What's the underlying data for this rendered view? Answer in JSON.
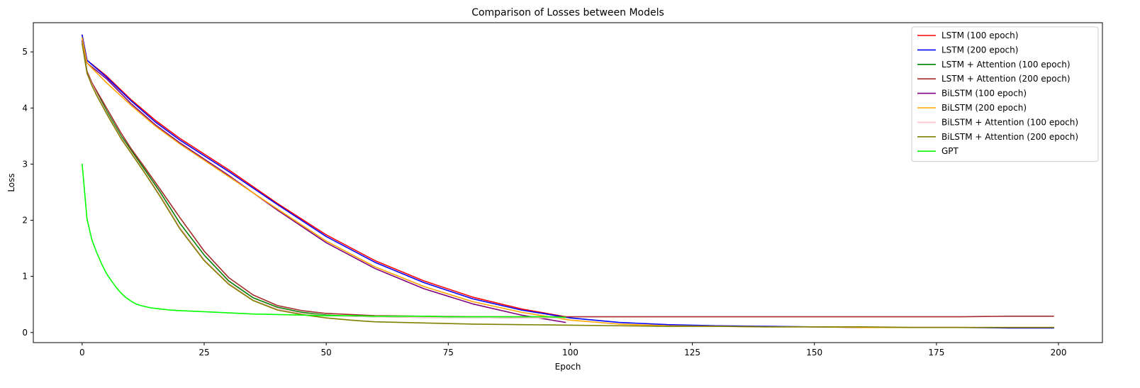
{
  "chart_data": {
    "type": "line",
    "title": "Comparison of Losses between Models",
    "xlabel": "Epoch",
    "ylabel": "Loss",
    "xlim": [
      -10,
      209
    ],
    "ylim": [
      -0.18,
      5.52
    ],
    "xticks": [
      0,
      25,
      50,
      75,
      100,
      125,
      150,
      175,
      200
    ],
    "yticks": [
      0,
      1,
      2,
      3,
      4,
      5
    ],
    "grid": false,
    "legend": "top-right",
    "series": [
      {
        "name": "LSTM (100 epoch)",
        "color": "#ff0000",
        "x": [
          0,
          1,
          5,
          10,
          15,
          20,
          30,
          40,
          50,
          60,
          70,
          80,
          90,
          99
        ],
        "y": [
          5.3,
          4.85,
          4.57,
          4.15,
          3.78,
          3.46,
          2.9,
          2.3,
          1.74,
          1.28,
          0.92,
          0.63,
          0.42,
          0.28
        ]
      },
      {
        "name": "LSTM (200 epoch)",
        "color": "#0000ff",
        "x": [
          0,
          1,
          5,
          10,
          15,
          20,
          30,
          40,
          50,
          60,
          70,
          80,
          90,
          100,
          110,
          120,
          130,
          140,
          150,
          160,
          170,
          180,
          190,
          199
        ],
        "y": [
          5.3,
          4.85,
          4.55,
          4.13,
          3.75,
          3.43,
          2.87,
          2.28,
          1.71,
          1.25,
          0.89,
          0.6,
          0.4,
          0.26,
          0.18,
          0.14,
          0.12,
          0.11,
          0.1,
          0.09,
          0.09,
          0.09,
          0.08,
          0.08
        ]
      },
      {
        "name": "LSTM + Attention (100 epoch)",
        "color": "#008000",
        "x": [
          0,
          1,
          2,
          3,
          5,
          8,
          10,
          13,
          16,
          20,
          25,
          30,
          35,
          40,
          45,
          50,
          55,
          60,
          70,
          80,
          90,
          99
        ],
        "y": [
          5.2,
          4.65,
          4.45,
          4.28,
          3.95,
          3.5,
          3.25,
          2.88,
          2.5,
          1.95,
          1.38,
          0.92,
          0.62,
          0.45,
          0.36,
          0.31,
          0.29,
          0.28,
          0.27,
          0.27,
          0.26,
          0.26
        ]
      },
      {
        "name": "LSTM + Attention (200 epoch)",
        "color": "#a52a2a",
        "x": [
          0,
          1,
          2,
          3,
          5,
          8,
          10,
          13,
          16,
          20,
          25,
          30,
          35,
          40,
          45,
          50,
          55,
          60,
          70,
          80,
          90,
          100,
          110,
          120,
          130,
          140,
          150,
          160,
          170,
          180,
          190,
          199
        ],
        "y": [
          5.15,
          4.65,
          4.45,
          4.3,
          4.0,
          3.55,
          3.28,
          2.92,
          2.55,
          2.05,
          1.45,
          0.98,
          0.67,
          0.48,
          0.39,
          0.34,
          0.32,
          0.3,
          0.29,
          0.28,
          0.28,
          0.28,
          0.28,
          0.28,
          0.28,
          0.28,
          0.28,
          0.28,
          0.28,
          0.28,
          0.29,
          0.29
        ]
      },
      {
        "name": "BiLSTM (100 epoch)",
        "color": "#800080",
        "x": [
          0,
          1,
          5,
          10,
          15,
          20,
          30,
          40,
          50,
          60,
          70,
          80,
          90,
          99
        ],
        "y": [
          5.2,
          4.8,
          4.52,
          4.08,
          3.7,
          3.38,
          2.8,
          2.18,
          1.6,
          1.14,
          0.78,
          0.51,
          0.31,
          0.18
        ]
      },
      {
        "name": "BiLSTM (200 epoch)",
        "color": "#ffa500",
        "x": [
          0,
          1,
          5,
          10,
          15,
          20,
          30,
          40,
          50,
          60,
          70,
          80,
          90,
          100,
          110,
          120,
          130,
          140,
          150,
          160,
          170,
          180,
          190,
          199
        ],
        "y": [
          5.25,
          4.8,
          4.45,
          4.05,
          3.68,
          3.36,
          2.78,
          2.2,
          1.63,
          1.17,
          0.82,
          0.55,
          0.36,
          0.22,
          0.15,
          0.12,
          0.11,
          0.1,
          0.1,
          0.09,
          0.09,
          0.09,
          0.09,
          0.09
        ]
      },
      {
        "name": "BiLSTM + Attention (100 epoch)",
        "color": "#ffc0cb",
        "x": [
          0,
          1,
          2,
          3,
          5,
          8,
          10,
          13,
          16,
          20,
          25,
          30,
          35,
          40,
          45,
          50,
          55,
          60,
          70,
          80,
          90,
          99
        ],
        "y": [
          5.15,
          4.62,
          4.42,
          4.25,
          3.92,
          3.47,
          3.22,
          2.84,
          2.45,
          1.88,
          1.3,
          0.88,
          0.58,
          0.42,
          0.34,
          0.3,
          0.29,
          0.28,
          0.27,
          0.27,
          0.26,
          0.26
        ]
      },
      {
        "name": "BiLSTM + Attention (200 epoch)",
        "color": "#808000",
        "x": [
          0,
          1,
          2,
          3,
          5,
          8,
          10,
          13,
          16,
          20,
          25,
          30,
          35,
          40,
          45,
          50,
          55,
          60,
          70,
          80,
          90,
          100,
          110,
          120,
          130,
          140,
          150,
          160,
          170,
          180,
          190,
          199
        ],
        "y": [
          5.15,
          4.62,
          4.4,
          4.22,
          3.9,
          3.45,
          3.2,
          2.82,
          2.42,
          1.85,
          1.28,
          0.86,
          0.57,
          0.4,
          0.32,
          0.26,
          0.22,
          0.19,
          0.17,
          0.15,
          0.14,
          0.13,
          0.12,
          0.11,
          0.11,
          0.1,
          0.1,
          0.1,
          0.09,
          0.09,
          0.09,
          0.09
        ]
      },
      {
        "name": "GPT",
        "color": "#00ff00",
        "x": [
          0,
          1,
          2,
          3,
          4,
          5,
          6,
          7,
          8,
          9,
          10,
          11,
          12,
          14,
          16,
          18,
          20,
          25,
          30,
          35,
          40,
          45,
          50,
          55,
          60,
          65,
          70,
          75,
          80,
          85,
          90,
          95,
          99
        ],
        "y": [
          3.0,
          2.02,
          1.65,
          1.42,
          1.22,
          1.05,
          0.92,
          0.8,
          0.7,
          0.62,
          0.56,
          0.51,
          0.48,
          0.44,
          0.42,
          0.4,
          0.39,
          0.37,
          0.35,
          0.33,
          0.32,
          0.31,
          0.3,
          0.3,
          0.29,
          0.29,
          0.29,
          0.28,
          0.28,
          0.28,
          0.28,
          0.28,
          0.27
        ]
      }
    ]
  }
}
